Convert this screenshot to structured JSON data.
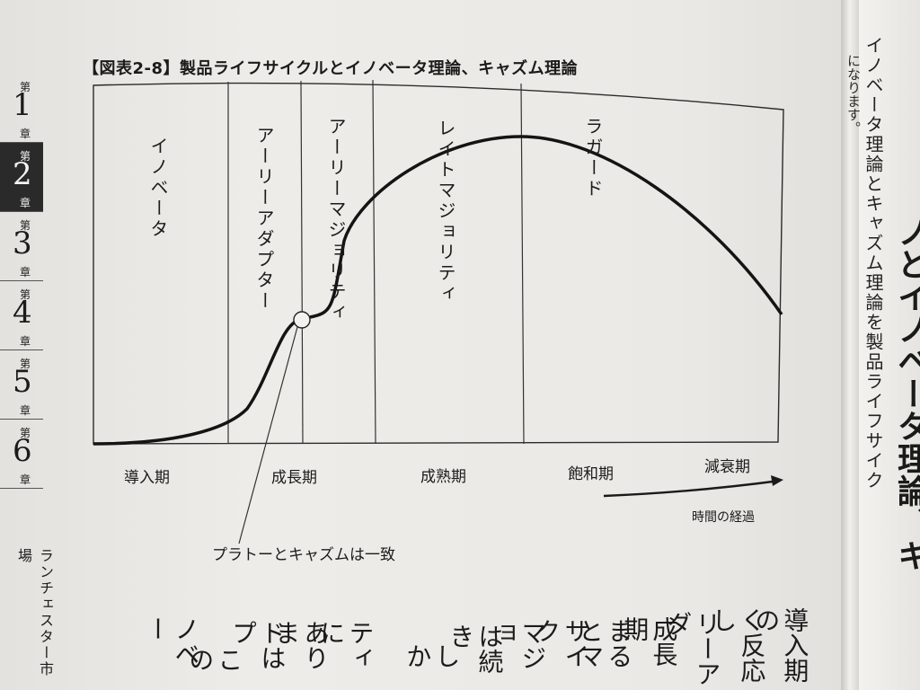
{
  "figure": {
    "title": "【図表2-8】製品ライフサイクルとイノベータ理論、キャズム理論",
    "segments": [
      "イノベータ",
      "アーリーアダプター",
      "アーリーマジョリティ",
      "レイトマジョリティ",
      "ラガード"
    ],
    "phases": [
      "導入期",
      "成長期",
      "成熟期",
      "飽和期",
      "減衰期"
    ],
    "time_label": "時間の経過",
    "annotation": "プラトーとキャズムは一致"
  },
  "chapter_tabs": {
    "items": [
      {
        "prefix": "第",
        "number": "1",
        "suffix": "章"
      },
      {
        "prefix": "第",
        "number": "2",
        "suffix": "章"
      },
      {
        "prefix": "第",
        "number": "3",
        "suffix": "章"
      },
      {
        "prefix": "第",
        "number": "4",
        "suffix": "章"
      },
      {
        "prefix": "第",
        "number": "5",
        "suffix": "章"
      },
      {
        "prefix": "第",
        "number": "6",
        "suffix": "章"
      }
    ],
    "active_index": 1,
    "vertical_text": "ランチェスター市場"
  },
  "body_text": {
    "columns": [
      "導入期の",
      "く反応し",
      "リーアダ",
      "成長期",
      "まるとマ",
      "サイク",
      "マジョ",
      "は続き",
      "しか",
      "ティに",
      "ありま",
      "ドはプ",
      "この",
      "ノベー"
    ]
  },
  "right_page": {
    "small_column": "になります。",
    "column_1": "イノベータ理論とキャズム理論を製品ライフサイク",
    "column_2": "ノとイノベータ理論、キ"
  }
}
